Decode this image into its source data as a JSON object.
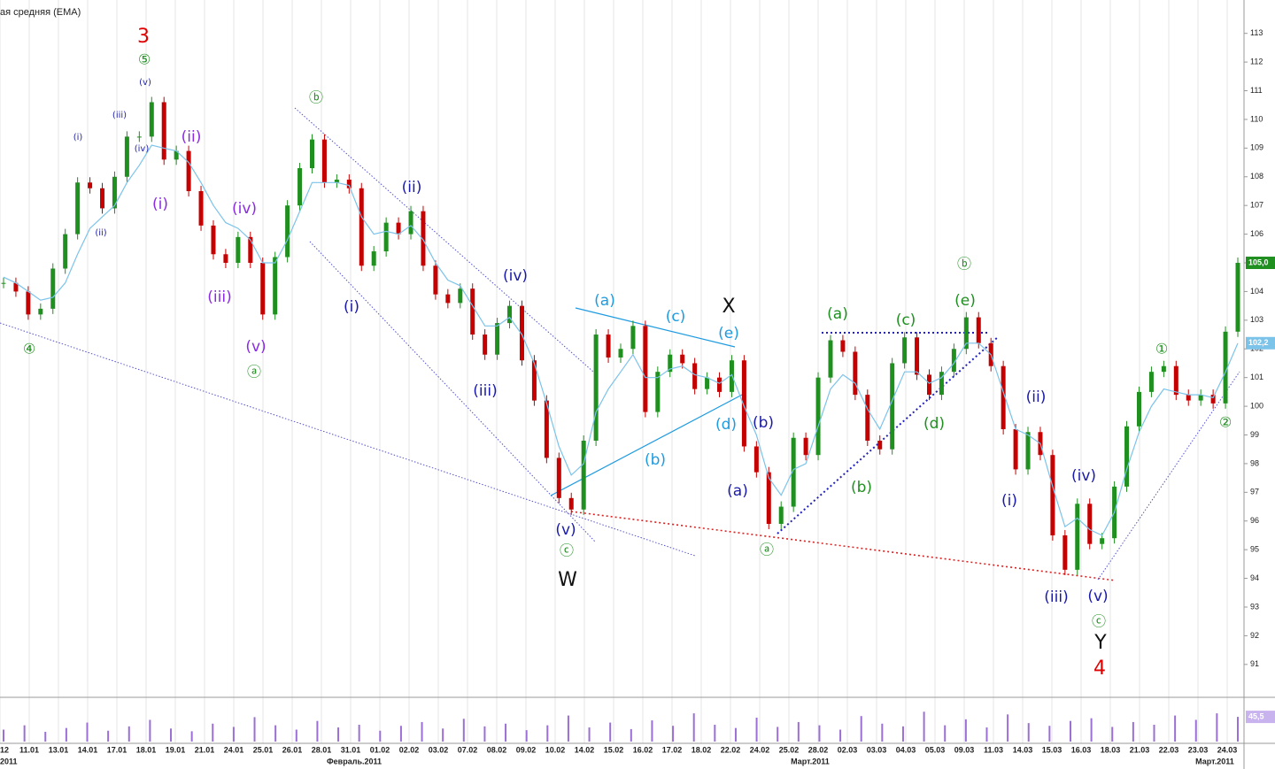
{
  "chart_data": {
    "type": "candlestick",
    "legend_text": "ая средняя (EMA)",
    "ylim": [
      90.1,
      113.7
    ],
    "yticks": [
      91,
      92,
      93,
      94,
      95,
      96,
      97,
      98,
      99,
      100,
      101,
      102,
      103,
      104,
      105,
      106,
      107,
      108,
      109,
      110,
      111,
      112,
      113
    ],
    "grid": "vertical",
    "date_labels": [
      "12",
      "11.01",
      "13.01",
      "14.01",
      "17.01",
      "18.01",
      "19.01",
      "21.01",
      "24.01",
      "25.01",
      "26.01",
      "28.01",
      "31.01",
      "01.02",
      "02.02",
      "03.02",
      "07.02",
      "08.02",
      "09.02",
      "10.02",
      "14.02",
      "15.02",
      "16.02",
      "17.02",
      "18.02",
      "22.02",
      "24.02",
      "25.02",
      "28.02",
      "02.03",
      "03.03",
      "04.03",
      "05.03",
      "09.03",
      "11.03",
      "14.03",
      "15.03",
      "16.03",
      "18.03",
      "21.03",
      "22.03",
      "23.03",
      "24.03"
    ],
    "month_labels": [
      "2011",
      "Февраль.2011",
      "Март.2011",
      "Март.2011"
    ],
    "series": [
      {
        "color_up": "#1f8f1f",
        "color_down": "#c40000",
        "values": [
          104.3,
          104,
          103.2,
          103.4,
          104.8,
          106,
          107.8,
          107.6,
          106.9,
          108,
          109.4,
          109.4,
          110.6,
          108.6,
          108.9,
          107.5,
          106.3,
          105.3,
          105,
          105.9,
          105,
          103.2,
          105.2,
          107,
          108.3,
          109.3,
          107.8,
          107.9,
          107.6,
          104.9,
          105.4,
          106.4,
          106,
          106.8,
          104.9,
          103.9,
          103.6,
          104.1,
          102.5,
          101.8,
          102.9,
          103.5,
          101.6,
          100.2,
          98.2,
          96.8,
          96.4,
          98.8,
          102.5,
          101.7,
          102,
          102.8,
          99.8,
          101.2,
          101.8,
          101.5,
          100.6,
          101,
          100.5,
          101.6,
          98.6,
          97.7,
          95.9,
          96.5,
          98.9,
          98.3,
          101,
          102.3,
          101.9,
          100.4,
          98.8,
          98.5,
          101.5,
          102.4,
          101.1,
          100.4,
          101.2,
          102,
          103.1,
          102.2,
          101.4,
          99.2,
          97.8,
          99.1,
          98.3,
          95.5,
          94.3,
          96.6,
          95.2,
          95.4,
          97.2,
          99.3,
          100.5,
          101.2,
          101.4,
          100.4,
          100.2,
          100.4,
          100.1,
          102.6,
          105
        ],
        "last_label": {
          "value": 105,
          "label": "105,0"
        },
        "label_color": "#1f8f1f"
      },
      {
        "color": "#7cc3ea",
        "values": [
          104.5,
          104.3,
          104,
          103.7,
          103.8,
          104.3,
          105.3,
          106.2,
          106.6,
          107,
          107.8,
          108.4,
          109.1,
          109,
          108.9,
          108.5,
          107.8,
          107,
          106.4,
          106.2,
          105.8,
          105,
          105,
          105.8,
          106.8,
          107.8,
          107.8,
          107.8,
          107.7,
          106.6,
          106,
          106.1,
          106,
          106.3,
          105.8,
          105,
          104.4,
          104.2,
          103.5,
          102.8,
          102.8,
          103.1,
          102.5,
          101.5,
          100.1,
          98.6,
          97.6,
          98,
          99.8,
          100.6,
          101.2,
          101.8,
          101,
          101,
          101.3,
          101.4,
          101.1,
          101,
          100.8,
          101.1,
          100,
          99,
          97.5,
          96.9,
          97.8,
          98,
          99.3,
          100.6,
          101.1,
          100.8,
          99.9,
          99.2,
          100.2,
          101.2,
          101.2,
          100.8,
          101,
          101.5,
          102.2,
          102.2,
          101.8,
          100.5,
          99.2,
          99,
          98.7,
          97.2,
          95.8,
          96.1,
          95.7,
          95.5,
          96.3,
          97.8,
          99.1,
          100,
          100.6,
          100.5,
          100.4,
          100.4,
          100.3,
          101.2,
          102.2
        ],
        "last_label": {
          "value": 102.2,
          "label": "102,2"
        },
        "label_color": "#7cc3ea"
      }
    ],
    "volume": {
      "ylim": [
        0,
        75
      ],
      "color": "#9b6fd6",
      "values": [
        22,
        30,
        18,
        25,
        35,
        20,
        28,
        40,
        24,
        19,
        33,
        27,
        45,
        30,
        22,
        38,
        26,
        31,
        20,
        29,
        36,
        24,
        42,
        28,
        33,
        21,
        30,
        48,
        26,
        35,
        23,
        39,
        29,
        52,
        31,
        25,
        44,
        27,
        36,
        30,
        22,
        47,
        33,
        28,
        55,
        30,
        41,
        26,
        50,
        34,
        29,
        38,
        43,
        27,
        36,
        31,
        48,
        40,
        52,
        45.5
      ],
      "last_label": {
        "value": 45.5,
        "label": "45,5"
      },
      "label_color": "#c9b3ee"
    },
    "annotations": [
      {
        "text": "3",
        "color": "#e00000"
      },
      {
        "text": "⑤",
        "color": "#1f8f1f"
      },
      {
        "text": "(v)",
        "color": "#2222aa"
      },
      {
        "text": "(iii)",
        "color": "#2222aa"
      },
      {
        "text": "(i)",
        "color": "#2222aa"
      },
      {
        "text": "(iv)",
        "color": "#2222aa"
      },
      {
        "text": "(ii)",
        "color": "#2222aa"
      },
      {
        "text": "④",
        "color": "#1f8f1f"
      },
      {
        "text": "(ii)",
        "color": "#8a2be2"
      },
      {
        "text": "(i)",
        "color": "#8a2be2"
      },
      {
        "text": "(iv)",
        "color": "#8a2be2"
      },
      {
        "text": "(iii)",
        "color": "#8a2be2"
      },
      {
        "text": "(v)",
        "color": "#8a2be2"
      },
      {
        "text": "ⓐ",
        "color": "#1f8f1f"
      },
      {
        "text": "ⓑ",
        "color": "#1f8f1f"
      },
      {
        "text": "(ii)",
        "color": "#1a1aaa"
      },
      {
        "text": "(i)",
        "color": "#1a1aaa"
      },
      {
        "text": "(iv)",
        "color": "#1a1aaa"
      },
      {
        "text": "(iii)",
        "color": "#1a1aaa"
      },
      {
        "text": "(v)",
        "color": "#1a1aaa"
      },
      {
        "text": "ⓒ",
        "color": "#1f8f1f"
      },
      {
        "text": "W",
        "color": "#111111"
      },
      {
        "text": "(a)",
        "color": "#1e9be0"
      },
      {
        "text": "(c)",
        "color": "#1e9be0"
      },
      {
        "text": "(e)",
        "color": "#1e9be0"
      },
      {
        "text": "(b)",
        "color": "#1e9be0"
      },
      {
        "text": "(d)",
        "color": "#1e9be0"
      },
      {
        "text": "X",
        "color": "#111111"
      },
      {
        "text": "(b)",
        "color": "#1a1aaa"
      },
      {
        "text": "(a)",
        "color": "#1a1aaa"
      },
      {
        "text": "ⓐ",
        "color": "#1f8f1f"
      },
      {
        "text": "(a)",
        "color": "#1f8f1f"
      },
      {
        "text": "(c)",
        "color": "#1f8f1f"
      },
      {
        "text": "(b)",
        "color": "#1f8f1f"
      },
      {
        "text": "(d)",
        "color": "#1f8f1f"
      },
      {
        "text": "ⓑ",
        "color": "#1f8f1f"
      },
      {
        "text": "(e)",
        "color": "#1f8f1f"
      },
      {
        "text": "(ii)",
        "color": "#1a1aaa"
      },
      {
        "text": "(i)",
        "color": "#1a1aaa"
      },
      {
        "text": "(iv)",
        "color": "#1a1aaa"
      },
      {
        "text": "(iii)",
        "color": "#1a1aaa"
      },
      {
        "text": "(v)",
        "color": "#1a1aaa"
      },
      {
        "text": "ⓒ",
        "color": "#1f8f1f"
      },
      {
        "text": "Y",
        "color": "#111111"
      },
      {
        "text": "4",
        "color": "#e00000"
      },
      {
        "text": "①",
        "color": "#1f8f1f"
      },
      {
        "text": "②",
        "color": "#1f8f1f"
      }
    ]
  }
}
